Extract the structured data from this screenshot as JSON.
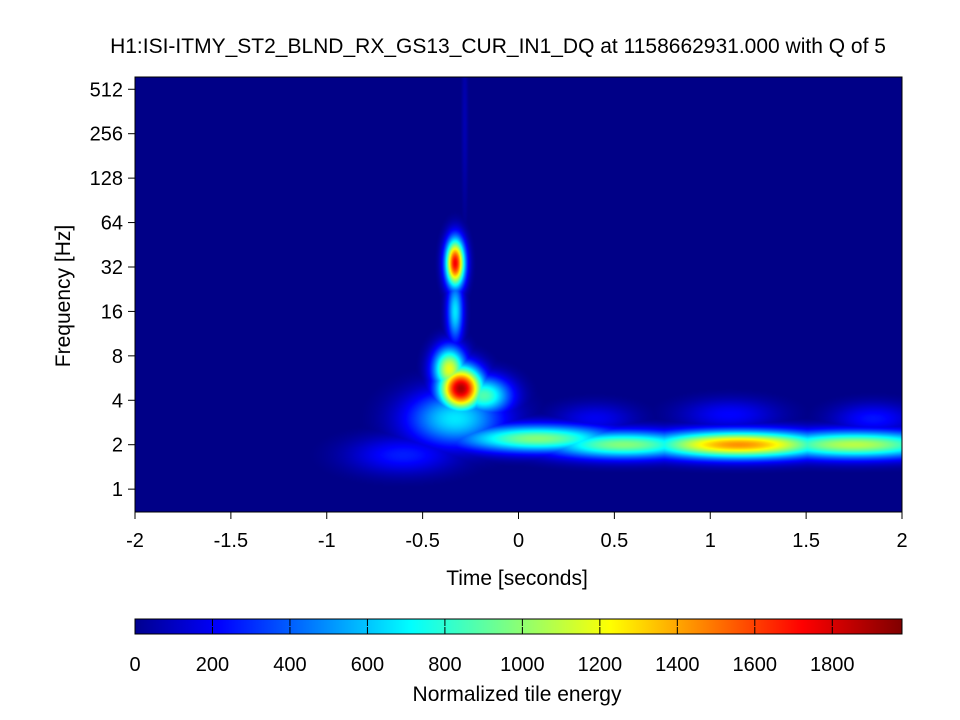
{
  "chart_data": {
    "type": "heatmap",
    "title": "H1:ISI-ITMY_ST2_BLND_RX_GS13_CUR_IN1_DQ at 1158662931.000 with Q of 5",
    "xlabel": "Time [seconds]",
    "ylabel": "Frequency [Hz]",
    "x_range": [
      -2,
      2
    ],
    "x_ticks": [
      -2,
      -1.5,
      -1,
      -0.5,
      0,
      0.5,
      1,
      1.5,
      2
    ],
    "x_tick_labels": [
      "-2",
      "-1.5",
      "-1",
      "-0.5",
      "0",
      "0.5",
      "1",
      "1.5",
      "2"
    ],
    "y_scale": "log2",
    "y_range": [
      0.7,
      620
    ],
    "y_ticks": [
      1,
      2,
      4,
      8,
      16,
      32,
      64,
      128,
      256,
      512
    ],
    "y_tick_labels": [
      "1",
      "2",
      "4",
      "8",
      "16",
      "32",
      "64",
      "128",
      "256",
      "512"
    ],
    "colormap": "jet",
    "colorbar": {
      "label": "Normalized tile energy",
      "range": [
        0,
        1980
      ],
      "ticks": [
        0,
        200,
        400,
        600,
        800,
        1000,
        1200,
        1400,
        1600,
        1800
      ],
      "tick_labels": [
        "0",
        "200",
        "400",
        "600",
        "800",
        "1000",
        "1200",
        "1400",
        "1600",
        "1800"
      ]
    },
    "energy_features": [
      {
        "t": -0.33,
        "f": 34,
        "peak": 1750,
        "sigma_t": 0.035,
        "sigma_log2f": 0.38
      },
      {
        "t": -0.33,
        "f": 16,
        "peak": 700,
        "sigma_t": 0.03,
        "sigma_log2f": 0.5
      },
      {
        "t": -0.3,
        "f": 4.8,
        "peak": 1900,
        "sigma_t": 0.08,
        "sigma_log2f": 0.35
      },
      {
        "t": -0.36,
        "f": 6.5,
        "peak": 1200,
        "sigma_t": 0.06,
        "sigma_log2f": 0.35
      },
      {
        "t": -0.18,
        "f": 4.3,
        "peak": 900,
        "sigma_t": 0.1,
        "sigma_log2f": 0.3
      },
      {
        "t": -0.33,
        "f": 3.0,
        "peak": 700,
        "sigma_t": 0.18,
        "sigma_log2f": 0.45
      },
      {
        "t": 0.1,
        "f": 2.2,
        "peak": 1000,
        "sigma_t": 0.3,
        "sigma_log2f": 0.22
      },
      {
        "t": 0.55,
        "f": 2.0,
        "peak": 1000,
        "sigma_t": 0.3,
        "sigma_log2f": 0.22
      },
      {
        "t": 1.15,
        "f": 2.0,
        "peak": 1450,
        "sigma_t": 0.35,
        "sigma_log2f": 0.22
      },
      {
        "t": 1.75,
        "f": 2.0,
        "peak": 1100,
        "sigma_t": 0.35,
        "sigma_log2f": 0.22
      },
      {
        "t": -0.6,
        "f": 1.7,
        "peak": 300,
        "sigma_t": 0.2,
        "sigma_log2f": 0.3
      },
      {
        "t": 0.4,
        "f": 3.0,
        "peak": 220,
        "sigma_t": 0.15,
        "sigma_log2f": 0.25
      },
      {
        "t": 1.1,
        "f": 3.2,
        "peak": 250,
        "sigma_t": 0.18,
        "sigma_log2f": 0.25
      },
      {
        "t": 1.85,
        "f": 3.0,
        "peak": 280,
        "sigma_t": 0.15,
        "sigma_log2f": 0.25
      },
      {
        "t": -0.28,
        "f": 300,
        "peak": 100,
        "sigma_t": 0.012,
        "sigma_log2f": 1.5
      }
    ]
  }
}
